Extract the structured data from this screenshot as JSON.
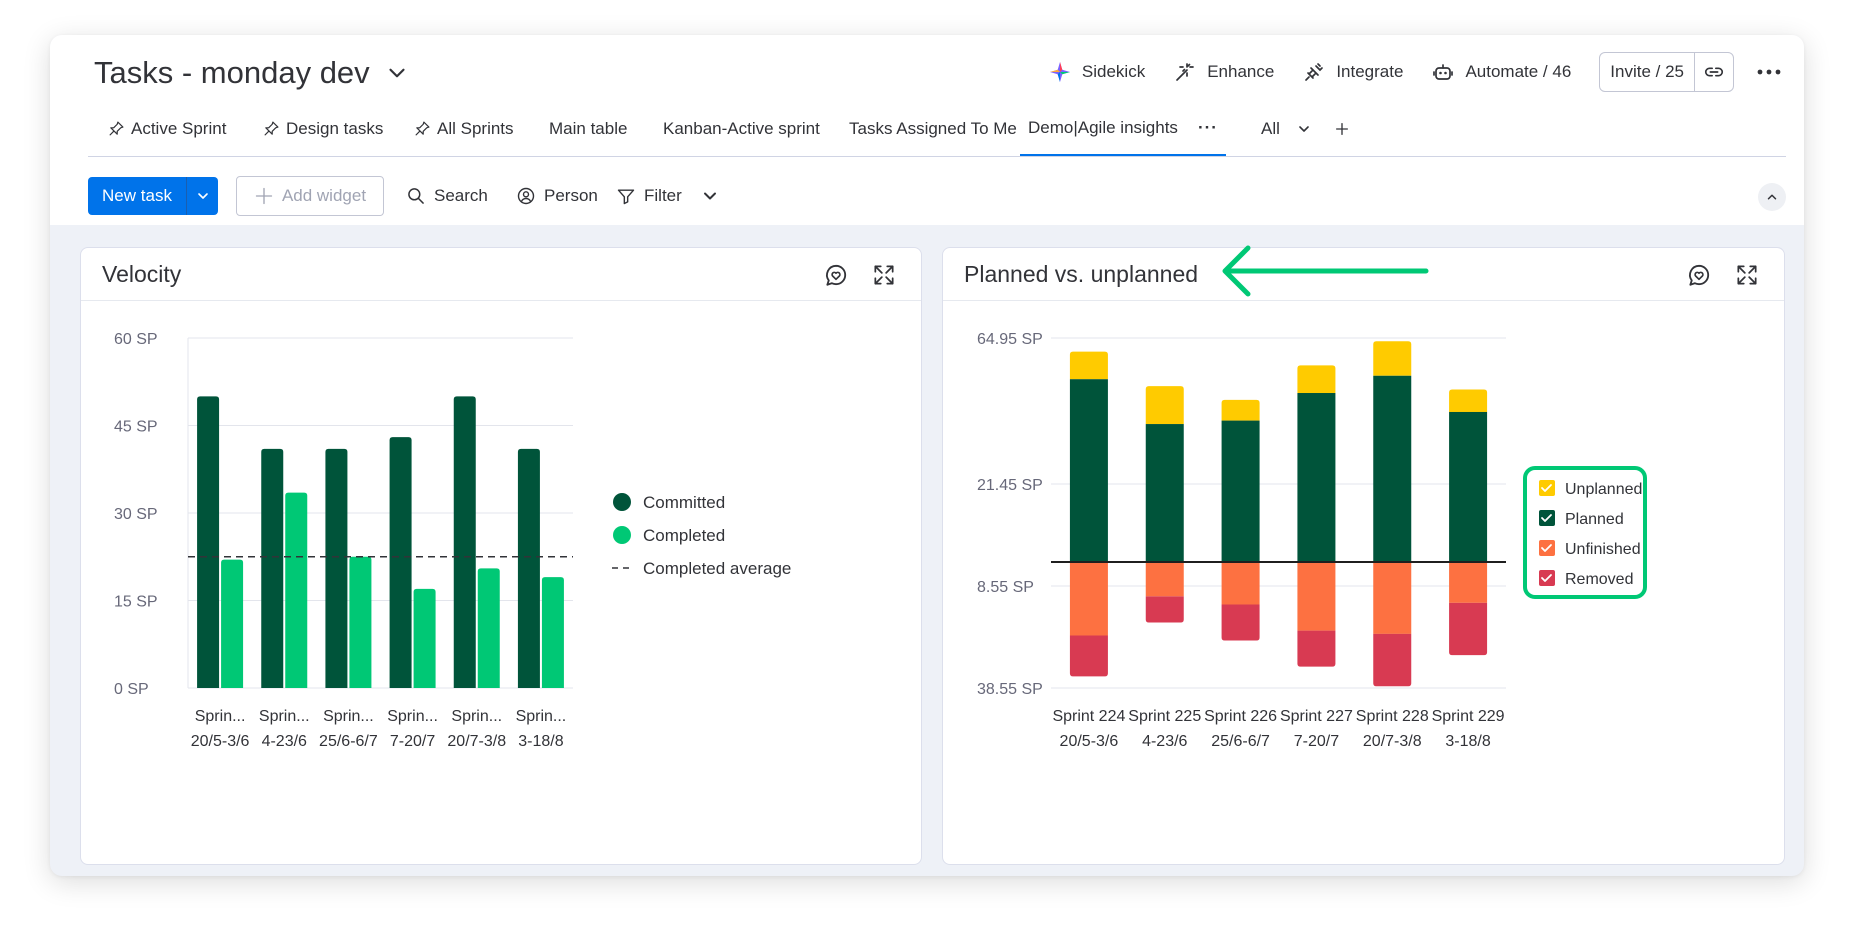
{
  "board": {
    "title": "Tasks - monday dev"
  },
  "top_actions": {
    "sidekick": "Sidekick",
    "enhance": "Enhance",
    "integrate": "Integrate",
    "automate": "Automate / 46",
    "invite": "Invite / 25"
  },
  "tabs": [
    {
      "label": "Active Sprint",
      "pinned": true
    },
    {
      "label": "Design tasks",
      "pinned": true
    },
    {
      "label": "All Sprints",
      "pinned": true
    },
    {
      "label": "Main table",
      "pinned": false
    },
    {
      "label": "Kanban-Active sprint",
      "pinned": false
    },
    {
      "label": "Tasks Assigned To Me",
      "pinned": false
    },
    {
      "label": "Demo|Agile insights",
      "pinned": false,
      "active": true
    }
  ],
  "tabs_more": "All",
  "toolbar": {
    "new_task": "New task",
    "add_widget": "Add widget",
    "search": "Search",
    "person": "Person",
    "filter": "Filter"
  },
  "velocity": {
    "title": "Velocity",
    "chart_data": {
      "type": "bar",
      "categories": [
        "Sprin...",
        "Sprin...",
        "Sprin...",
        "Sprin...",
        "Sprin...",
        "Sprin..."
      ],
      "date_labels": [
        "20/5-3/6",
        "4-23/6",
        "25/6-6/7",
        "7-20/7",
        "20/7-3/8",
        "3-18/8"
      ],
      "series": [
        {
          "name": "Committed",
          "color": "#00543a",
          "values": [
            50,
            41,
            41,
            43,
            50,
            41
          ]
        },
        {
          "name": "Completed",
          "color": "#00c875",
          "values": [
            22,
            33.5,
            22.5,
            17,
            20.5,
            19
          ]
        }
      ],
      "average": {
        "name": "Completed average",
        "value": 22.5
      },
      "yticks": [
        "60 SP",
        "45 SP",
        "30 SP",
        "15 SP",
        "0 SP"
      ],
      "ylim": [
        0,
        60
      ],
      "legend": "right"
    }
  },
  "planned": {
    "title": "Planned vs. unplanned",
    "chart_data": {
      "type": "bar",
      "stacked": true,
      "categories": [
        "Sprint 224",
        "Sprint 225",
        "Sprint 226",
        "Sprint 227",
        "Sprint 228",
        "Sprint 229"
      ],
      "date_labels": [
        "20/5-3/6",
        "4-23/6",
        "25/6-6/7",
        "7-20/7",
        "20/7-3/8",
        "3-18/8"
      ],
      "yticks": [
        "64.95 SP",
        "21.45 SP",
        "8.55 SP",
        "38.55 SP"
      ],
      "ylim": [
        -38.55,
        64.95
      ],
      "series": [
        {
          "name": "Unplanned",
          "color": "#ffcb00",
          "values": [
            8,
            11,
            6,
            8,
            10,
            6.5
          ]
        },
        {
          "name": "Planned",
          "color": "#00543a",
          "values": [
            53,
            40,
            41,
            49,
            54,
            43.5
          ]
        },
        {
          "name": "Unfinished",
          "color": "#fd7141",
          "values": [
            -22.5,
            -10.5,
            -13,
            -21,
            -22,
            -12.5
          ]
        },
        {
          "name": "Removed",
          "color": "#d83a52",
          "values": [
            -12.5,
            -8,
            -11,
            -11,
            -16,
            -16
          ]
        }
      ],
      "legend": "right"
    }
  }
}
